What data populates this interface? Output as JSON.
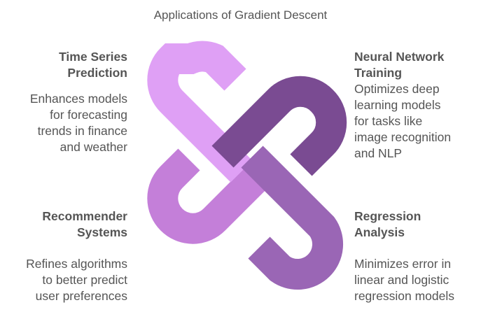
{
  "title": "Applications of Gradient Descent",
  "quadrants": {
    "top_left": {
      "heading": "Time Series\nPrediction",
      "description": "Enhances models\nfor forecasting\ntrends in finance\nand weather",
      "color": "#dfa0f5"
    },
    "top_right": {
      "heading": "Neural Network\nTraining",
      "description": "Optimizes deep\nlearning models\nfor tasks like\nimage recognition\nand NLP",
      "color": "#7a4b92"
    },
    "bottom_left": {
      "heading": "Recommender\nSystems",
      "description": "Refines algorithms\nto better predict\nuser preferences",
      "color": "#c47fd9"
    },
    "bottom_right": {
      "heading": "Regression\nAnalysis",
      "description": "Minimizes error in\nlinear and logistic\nregression models",
      "color": "#9a66b5"
    }
  }
}
